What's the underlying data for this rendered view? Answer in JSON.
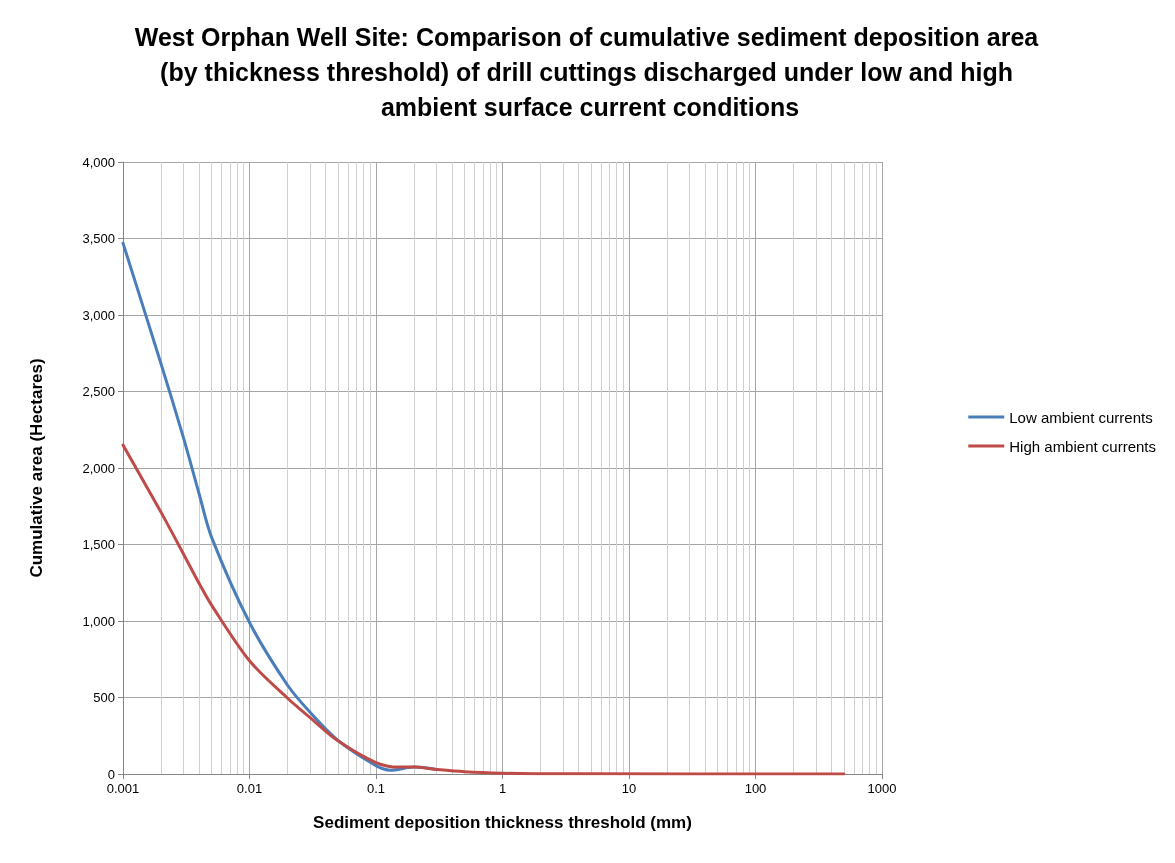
{
  "chart_data": {
    "type": "line",
    "title": "West Orphan Well Site: Comparison of cumulative sediment deposition area (by thickness threshold) of drill cuttings discharged under low and high ambient surface current conditions",
    "xlabel": "Sediment deposition thickness threshold (mm)",
    "ylabel": "Cumulative area (Hectares)",
    "log": "x",
    "grid": true,
    "legend": "right",
    "marker": "none",
    "line_style": "solid",
    "xlim": [
      0.001,
      1000
    ],
    "xticks": [
      0.001,
      0.01,
      0.1,
      1,
      10,
      100,
      1000
    ],
    "ylim": [
      0,
      4000
    ],
    "yticks": [
      0,
      500,
      {
        "value": 1000,
        "label": "1,000"
      },
      {
        "value": 1500,
        "label": "1,500"
      },
      {
        "value": 2000,
        "label": "2,000"
      },
      {
        "value": 2500,
        "label": "2,500"
      },
      {
        "value": 3000,
        "label": "3,000"
      },
      {
        "value": 3500,
        "label": "3,500"
      },
      {
        "value": 4000,
        "label": "4,000"
      }
    ],
    "series": [
      {
        "name": "Low ambient currents",
        "color": "#4a7ebb",
        "x": [
          0.001,
          0.002,
          0.003,
          0.004,
          0.005,
          0.01,
          0.02,
          0.03,
          0.05,
          0.1,
          0.13,
          0.2,
          0.3
        ],
        "values": [
          3470,
          2680,
          2200,
          1830,
          1550,
          990,
          580,
          405,
          220,
          55,
          25,
          45,
          30
        ]
      },
      {
        "name": "High ambient currents",
        "color": "#be4b48",
        "x": [
          0.001,
          0.002,
          0.003,
          0.004,
          0.005,
          0.01,
          0.02,
          0.03,
          0.05,
          0.1,
          0.15,
          0.2,
          0.3,
          0.5,
          1,
          2,
          5,
          500
        ],
        "values": [
          2150,
          1710,
          1440,
          1245,
          1105,
          740,
          495,
          370,
          217,
          75,
          45,
          45,
          30,
          15,
          5,
          2,
          1,
          0
        ]
      }
    ]
  }
}
